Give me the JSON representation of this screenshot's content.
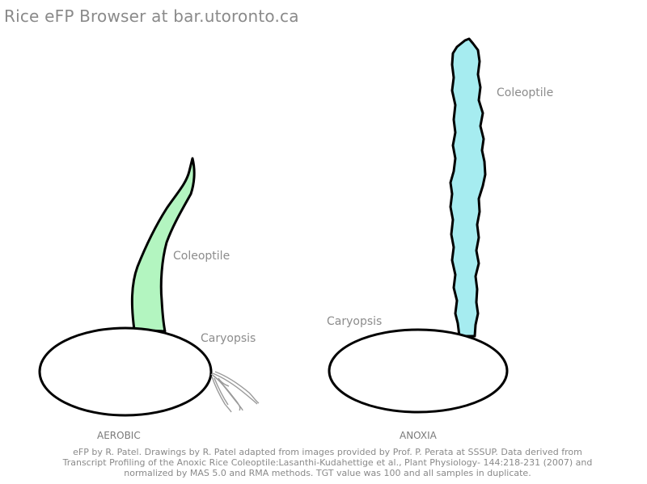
{
  "header": {
    "title": "Rice eFP Browser at bar.utoronto.ca"
  },
  "aerobic": {
    "condition_label": "AEROBIC",
    "coleoptile_label": "Coleoptile",
    "caryopsis_label": "Caryopsis",
    "coleoptile_color": "#b3f5c0"
  },
  "anoxia": {
    "condition_label": "ANOXIA",
    "coleoptile_label": "Coleoptile",
    "caryopsis_label": "Caryopsis",
    "coleoptile_color": "#a6ecf0"
  },
  "footer": {
    "line1": "eFP by R. Patel. Drawings by R. Patel adapted from images provided by Prof. P. Perata at SSSUP. Data derived from",
    "line2": "Transcript Profiling of the Anoxic Rice Coleoptile:Lasanthi-Kudahettige et al., Plant Physiology- 144:218-231 (2007)  and",
    "line3": "normalized by MAS 5.0 and RMA methods. TGT value was 100 and all samples in duplicate."
  }
}
